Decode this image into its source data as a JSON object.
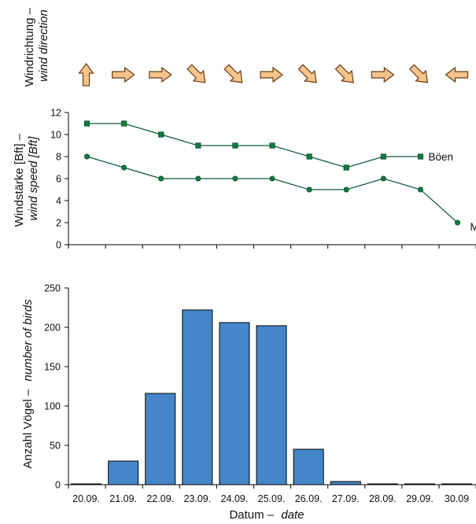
{
  "chart_data": [
    {
      "type": "wind_direction_arrows",
      "ylabel_de": "Windrichtung –",
      "ylabel_en": "wind direction",
      "categories": [
        "20.09.",
        "21.09.",
        "22.09.",
        "23.09.",
        "24.09.",
        "25.09.",
        "26.09.",
        "27.09.",
        "28.09.",
        "29.09.",
        "30.09"
      ],
      "directions_deg": [
        0,
        90,
        90,
        135,
        135,
        90,
        135,
        135,
        90,
        135,
        270
      ]
    },
    {
      "type": "line",
      "ylabel_de": "Windstärke [Bft] –",
      "ylabel_en": "wind speed [Bft]",
      "categories": [
        "20.09.",
        "21.09.",
        "22.09.",
        "23.09.",
        "24.09.",
        "25.09.",
        "26.09.",
        "27.09.",
        "28.09.",
        "29.09.",
        "30.09"
      ],
      "ylim": [
        0,
        12
      ],
      "yticks": [
        "0",
        "2",
        "4",
        "6",
        "8",
        "10",
        "12"
      ],
      "series": [
        {
          "name": "Böen",
          "marker": "square",
          "values": [
            11,
            11,
            10,
            9,
            9,
            9,
            8,
            7,
            8,
            8,
            null
          ]
        },
        {
          "name": "Mittel",
          "marker": "circle",
          "values": [
            8,
            7,
            6,
            6,
            6,
            6,
            5,
            5,
            6,
            5,
            2
          ]
        }
      ]
    },
    {
      "type": "bar",
      "ylabel_de": "Anzahl Vögel –",
      "ylabel_en": "number of birds",
      "xlabel_de": "Datum –",
      "xlabel_en": "date",
      "categories": [
        "20.09.",
        "21.09.",
        "22.09.",
        "23.09.",
        "24.09.",
        "25.09.",
        "26.09.",
        "27.09.",
        "28.09.",
        "29.09.",
        "30.09"
      ],
      "values": [
        1,
        30,
        116,
        222,
        206,
        202,
        45,
        4,
        1,
        1,
        1
      ],
      "ylim": [
        0,
        250
      ],
      "yticks": [
        "0",
        "50",
        "100",
        "150",
        "200",
        "250"
      ],
      "colors": {
        "bar": "#4486c8",
        "line": "#0d5a34",
        "arrow_fill": "#f8c48c"
      }
    }
  ]
}
